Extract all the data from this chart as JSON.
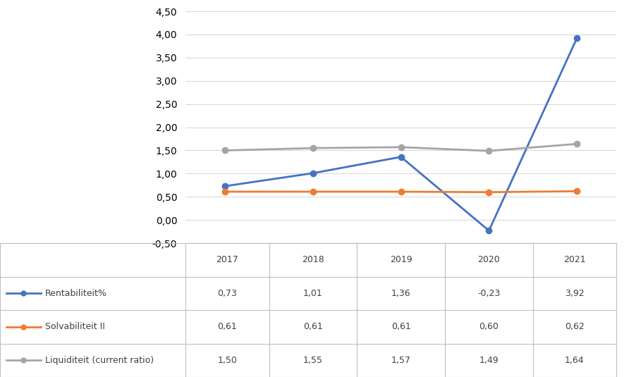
{
  "years": [
    2017,
    2018,
    2019,
    2020,
    2021
  ],
  "rentabiliteit": [
    0.73,
    1.01,
    1.36,
    -0.23,
    3.92
  ],
  "solvabiliteit": [
    0.61,
    0.61,
    0.61,
    0.6,
    0.62
  ],
  "liquiditeit": [
    1.5,
    1.55,
    1.57,
    1.49,
    1.64
  ],
  "rentabiliteit_color": "#4472C4",
  "solvabiliteit_color": "#ED7D31",
  "liquiditeit_color": "#A5A5A5",
  "ylim_min": -0.5,
  "ylim_max": 4.5,
  "yticks": [
    -0.5,
    0.0,
    0.5,
    1.0,
    1.5,
    2.0,
    2.5,
    3.0,
    3.5,
    4.0,
    4.5
  ],
  "table_rows": [
    [
      "Rentabiliteit%",
      "0,73",
      "1,01",
      "1,36",
      "-0,23",
      "3,92"
    ],
    [
      "Solvabiliteit II",
      "0,61",
      "0,61",
      "0,61",
      "0,60",
      "0,62"
    ],
    [
      "Liquiditeit (current ratio)",
      "1,50",
      "1,55",
      "1,57",
      "1,49",
      "1,64"
    ]
  ],
  "background_color": "#FFFFFF",
  "grid_color": "#D9D9D9",
  "border_color": "#BFBFBF",
  "font_size_ticks": 10,
  "font_size_table": 9,
  "marker_size": 6,
  "line_width": 2.0
}
